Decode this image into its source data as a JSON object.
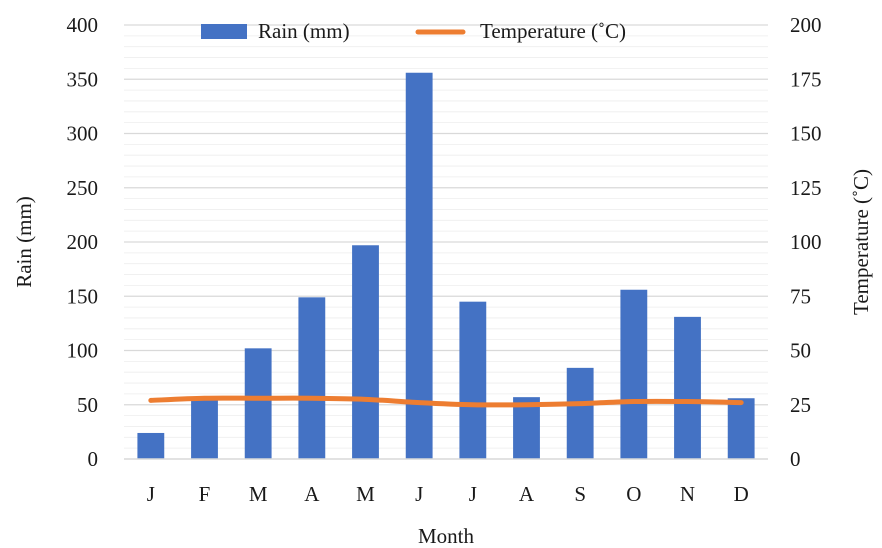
{
  "chart_data": {
    "type": "bar",
    "categories": [
      "J",
      "F",
      "M",
      "A",
      "M",
      "J",
      "J",
      "A",
      "S",
      "O",
      "N",
      "D"
    ],
    "series": [
      {
        "name": "Rain (mm)",
        "type": "bar",
        "axis": "left",
        "color": "#4472C4",
        "values": [
          24,
          55,
          102,
          149,
          197,
          356,
          145,
          57,
          84,
          156,
          131,
          56
        ]
      },
      {
        "name": "Temperature (˚C)",
        "type": "line",
        "axis": "right",
        "color": "#ED7D31",
        "values": [
          27,
          28,
          28,
          28,
          27.5,
          26,
          25,
          25,
          25.5,
          26.5,
          26.5,
          26
        ]
      }
    ],
    "xlabel": "Month",
    "ylabel": "Rain (mm)",
    "y2label": "Temperature (˚C)",
    "ylim": [
      0,
      400
    ],
    "y2lim": [
      0,
      200
    ],
    "yticks": [
      "0",
      "50",
      "100",
      "150",
      "200",
      "250",
      "300",
      "350",
      "400"
    ],
    "y2ticks": [
      "0",
      "25",
      "50",
      "75",
      "100",
      "125",
      "150",
      "175",
      "200"
    ],
    "grid": true,
    "legend": "top"
  }
}
